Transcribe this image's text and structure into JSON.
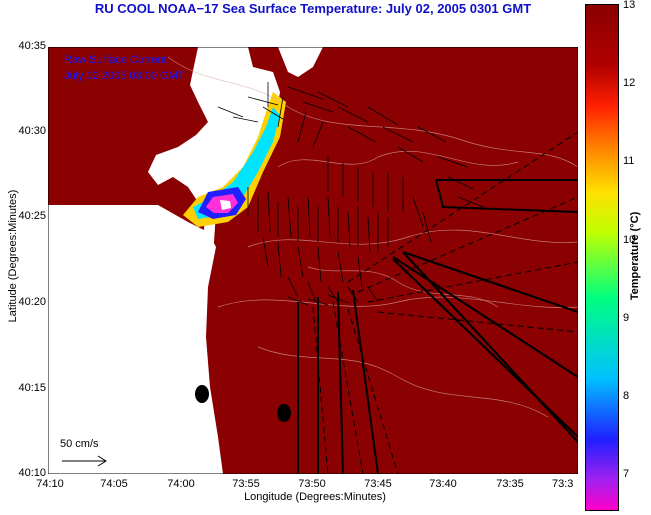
{
  "title": "RU COOL  NOAA−17  Sea Surface Temperature:  July 02, 2005 0301 GMT",
  "legend": {
    "line1": "Raw Surface Current",
    "line2": "July 02 2005 03:00 GMT",
    "scale_label": "50 cm/s"
  },
  "axes": {
    "xlabel": "Longitude (Degrees:Minutes)",
    "ylabel": "Latitude (Degrees:Minutes)",
    "x_ticks": [
      "74:10",
      "74:05",
      "74:00",
      "73:55",
      "73:50",
      "73:45",
      "73:40",
      "73:35",
      "73:3"
    ],
    "y_ticks": [
      "40:35",
      "40:30",
      "40:25",
      "40:20",
      "40:15",
      "40:10"
    ]
  },
  "colorbar": {
    "label": "Temperature (°C)",
    "ticks": [
      "13",
      "12",
      "11",
      "10",
      "9",
      "8",
      "7"
    ]
  },
  "colors": {
    "title": "#1010c8",
    "sea_dark_red": "#8b0000",
    "land": "#ffffff",
    "legend_text": "#1a1aff"
  }
}
